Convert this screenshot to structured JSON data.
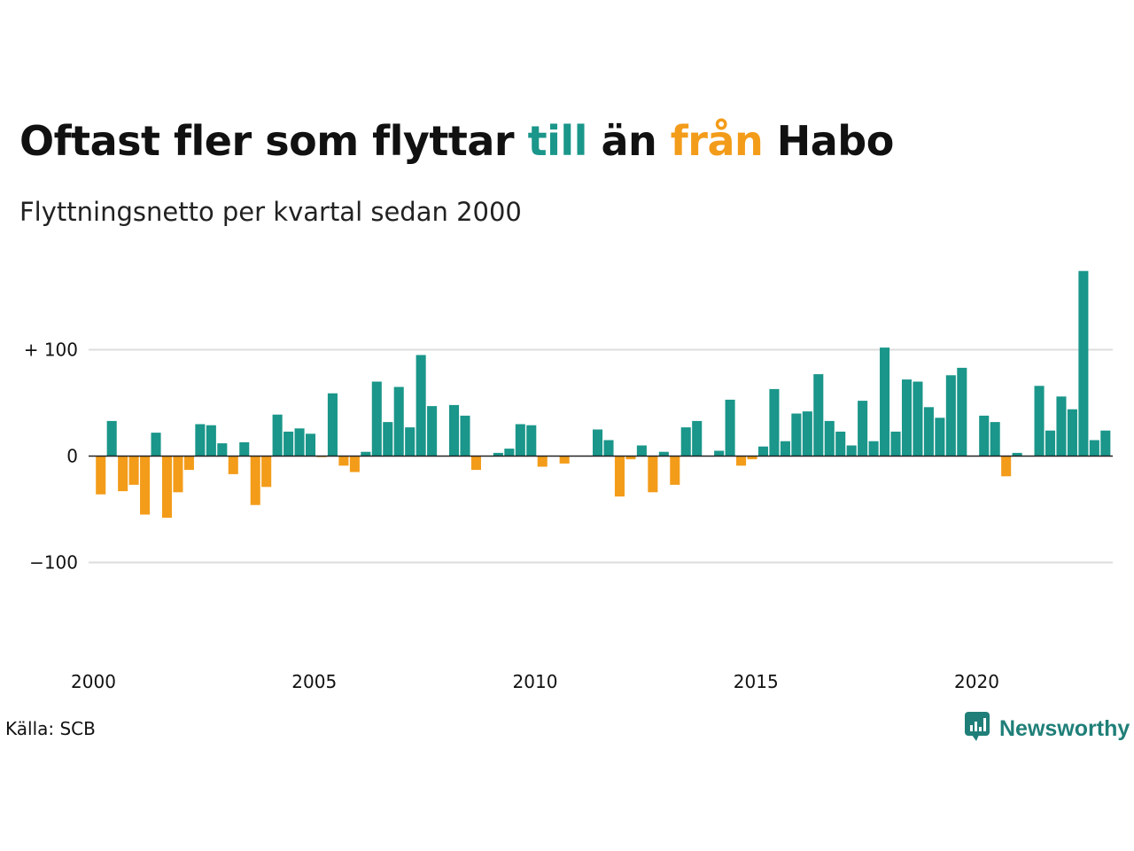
{
  "header": {
    "title_before": "Oftast fler som flyttar",
    "title_till": "till",
    "title_middle": "än",
    "title_fran": "från",
    "title_after": "Habo",
    "subtitle": "Flyttningsnetto per kvartal sedan 2000"
  },
  "footer": {
    "source": "Källa: SCB",
    "brand": "Newsworthy"
  },
  "colors": {
    "positive": "#1a968a",
    "negative": "#f39c1a",
    "title": "#111111",
    "grid": "#dddddd",
    "brand": "#1f7f78"
  },
  "icons": {
    "brand_logo": "newsworthy-logo-icon"
  },
  "chart_data": {
    "type": "bar",
    "x_start": 2000,
    "x_step": 0.25,
    "x_ticks": [
      2000,
      2005,
      2010,
      2015,
      2020
    ],
    "x_tick_labels": [
      "2000",
      "2005",
      "2010",
      "2015",
      "2020"
    ],
    "y_ticks": [
      100,
      0,
      -100
    ],
    "y_tick_labels": [
      "+ 100",
      "0",
      "−100"
    ],
    "ylim": [
      -160,
      180
    ],
    "grid": true,
    "values": [
      -36,
      33,
      -33,
      -27,
      -55,
      22,
      -58,
      -34,
      -13,
      30,
      29,
      12,
      -17,
      13,
      -46,
      -29,
      39,
      23,
      26,
      21,
      -1,
      59,
      -9,
      -15,
      4,
      70,
      32,
      65,
      27,
      95,
      47,
      0,
      48,
      38,
      -13,
      0,
      3,
      7,
      30,
      29,
      -10,
      0,
      -7,
      0,
      0,
      25,
      15,
      -38,
      -3,
      10,
      -34,
      4,
      -27,
      27,
      33,
      0,
      5,
      53,
      -9,
      -3,
      9,
      63,
      14,
      40,
      42,
      77,
      33,
      23,
      10,
      52,
      14,
      102,
      23,
      72,
      70,
      46,
      36,
      76,
      83,
      0,
      38,
      32,
      -19,
      3,
      0,
      66,
      24,
      56,
      44,
      174,
      15,
      24
    ]
  }
}
